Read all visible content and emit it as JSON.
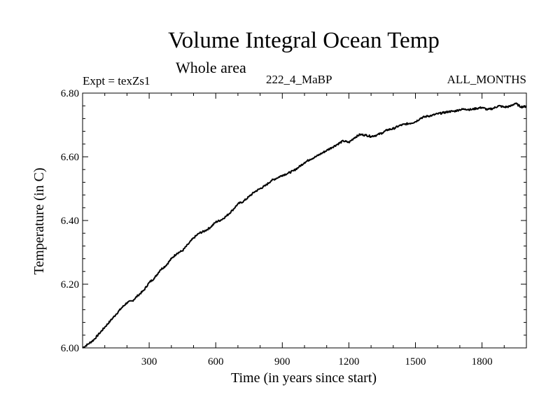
{
  "header": {
    "title": "Volume Integral Ocean Temp",
    "subtitle": "Whole area",
    "experiment": "Expt = texZs1",
    "run_label": "222_4_MaBP",
    "months_label": "ALL_MONTHS"
  },
  "chart_data": {
    "type": "line",
    "title": "Volume Integral Ocean Temp",
    "subtitle": "Whole area",
    "xlabel": "Time (in years since start)",
    "ylabel": "Temperature (in C)",
    "xlim": [
      0,
      2000
    ],
    "ylim": [
      6.0,
      6.8
    ],
    "xticks": [
      300,
      600,
      900,
      1200,
      1500,
      1800
    ],
    "xtick_labels": [
      "300",
      "600",
      "900",
      "1200",
      "1500",
      "1800"
    ],
    "yticks": [
      6.0,
      6.2,
      6.4,
      6.6,
      6.8
    ],
    "ytick_labels": [
      "6.00",
      "6.20",
      "6.40",
      "6.60",
      "6.80"
    ],
    "grid": false,
    "series": [
      {
        "name": "Volume Integral Ocean Temp",
        "color": "#000000",
        "x": [
          0,
          25,
          50,
          75,
          100,
          125,
          150,
          175,
          200,
          225,
          250,
          275,
          300,
          325,
          350,
          375,
          400,
          425,
          450,
          475,
          500,
          525,
          550,
          575,
          600,
          625,
          650,
          675,
          700,
          725,
          750,
          775,
          800,
          825,
          850,
          875,
          900,
          925,
          950,
          975,
          1000,
          1025,
          1050,
          1075,
          1100,
          1125,
          1150,
          1175,
          1200,
          1225,
          1250,
          1275,
          1300,
          1325,
          1350,
          1375,
          1400,
          1425,
          1450,
          1475,
          1500,
          1525,
          1550,
          1575,
          1600,
          1625,
          1650,
          1675,
          1700,
          1725,
          1750,
          1775,
          1800,
          1825,
          1850,
          1875,
          1900,
          1925,
          1950,
          1975,
          2000
        ],
        "y": [
          6.0,
          6.012,
          6.025,
          6.045,
          6.065,
          6.085,
          6.105,
          6.125,
          6.142,
          6.148,
          6.165,
          6.18,
          6.205,
          6.22,
          6.245,
          6.258,
          6.28,
          6.297,
          6.305,
          6.325,
          6.345,
          6.36,
          6.367,
          6.378,
          6.395,
          6.402,
          6.415,
          6.432,
          6.452,
          6.46,
          6.475,
          6.49,
          6.5,
          6.51,
          6.525,
          6.533,
          6.542,
          6.548,
          6.556,
          6.568,
          6.582,
          6.592,
          6.6,
          6.61,
          6.62,
          6.63,
          6.64,
          6.65,
          6.645,
          6.66,
          6.67,
          6.668,
          6.664,
          6.668,
          6.675,
          6.685,
          6.688,
          6.697,
          6.702,
          6.705,
          6.71,
          6.722,
          6.727,
          6.73,
          6.735,
          6.738,
          6.742,
          6.743,
          6.748,
          6.75,
          6.748,
          6.752,
          6.755,
          6.748,
          6.752,
          6.76,
          6.756,
          6.758,
          6.768,
          6.757,
          6.758
        ]
      }
    ]
  }
}
